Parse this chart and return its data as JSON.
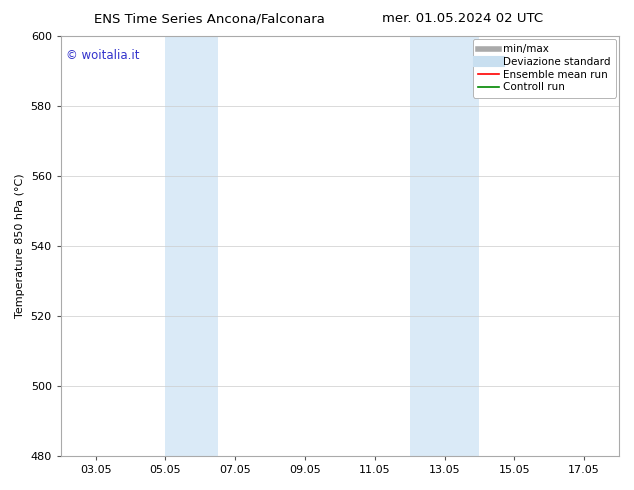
{
  "title_left": "ENS Time Series Ancona/Falconara",
  "title_right": "mer. 01.05.2024 02 UTC",
  "ylabel": "Temperature 850 hPa (°C)",
  "ylim": [
    480,
    600
  ],
  "yticks": [
    480,
    500,
    520,
    540,
    560,
    580,
    600
  ],
  "xtick_labels": [
    "03.05",
    "05.05",
    "07.05",
    "09.05",
    "11.05",
    "13.05",
    "15.05",
    "17.05"
  ],
  "xtick_positions": [
    2,
    4,
    6,
    8,
    10,
    12,
    14,
    16
  ],
  "xlim": [
    1,
    17
  ],
  "shaded_bands": [
    {
      "xmin": 4.0,
      "xmax": 5.5,
      "color": "#daeaf7"
    },
    {
      "xmin": 11.0,
      "xmax": 13.0,
      "color": "#daeaf7"
    }
  ],
  "watermark_text": "© woitalia.it",
  "watermark_color": "#3333cc",
  "background_color": "#ffffff",
  "plot_bg_color": "#ffffff",
  "legend_items": [
    {
      "label": "min/max",
      "color": "#aaaaaa",
      "lw": 4,
      "ls": "-"
    },
    {
      "label": "Deviazione standard",
      "color": "#c8dff0",
      "lw": 8,
      "ls": "-"
    },
    {
      "label": "Ensemble mean run",
      "color": "#ff0000",
      "lw": 1.2,
      "ls": "-"
    },
    {
      "label": "Controll run",
      "color": "#008800",
      "lw": 1.2,
      "ls": "-"
    }
  ],
  "title_fontsize": 9.5,
  "axis_label_fontsize": 8,
  "tick_fontsize": 8,
  "legend_fontsize": 7.5,
  "watermark_fontsize": 8.5
}
